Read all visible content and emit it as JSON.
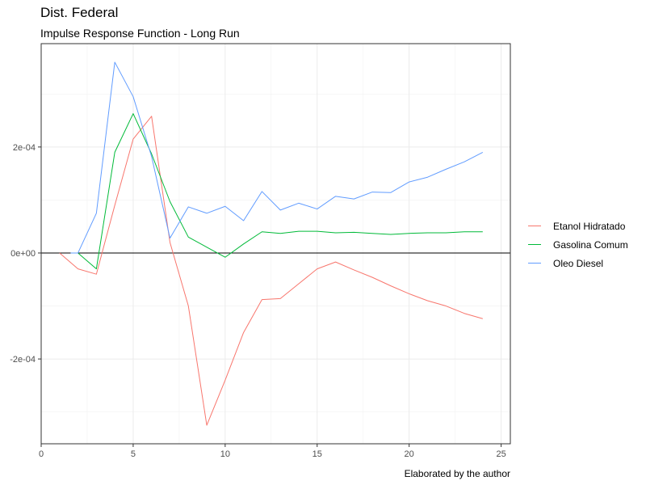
{
  "header": {
    "title": "Dist. Federal",
    "subtitle": "Impulse Response Function - Long Run"
  },
  "caption": "Elaborated by the author",
  "chart_data": {
    "type": "line",
    "title": "Dist. Federal",
    "subtitle": "Impulse Response Function - Long Run",
    "xlabel": "",
    "ylabel": "",
    "xlim": [
      0,
      25.5
    ],
    "ylim": [
      -0.00036,
      0.000395
    ],
    "x_ticks": [
      0,
      5,
      10,
      15,
      20,
      25
    ],
    "x_tick_labels": [
      "0",
      "5",
      "10",
      "15",
      "20",
      "25"
    ],
    "y_ticks": [
      -0.0002,
      0,
      0.0002
    ],
    "y_tick_labels": [
      "-2e-04",
      "0e+00",
      "2e-04"
    ],
    "grid": true,
    "legend_position": "right",
    "series": [
      {
        "name": "Etanol Hidratado",
        "color": "#F8766D",
        "x": [
          1,
          2,
          3,
          4,
          5,
          6,
          7,
          8,
          9,
          10,
          11,
          12,
          13,
          14,
          15,
          16,
          17,
          18,
          19,
          20,
          21,
          22,
          23,
          24
        ],
        "y": [
          0,
          -3e-05,
          -4e-05,
          9e-05,
          0.000215,
          0.000258,
          2e-05,
          -0.0001,
          -0.000325,
          -0.00024,
          -0.00015,
          -8.8e-05,
          -8.6e-05,
          -5.8e-05,
          -3e-05,
          -1.7e-05,
          -3.2e-05,
          -4.6e-05,
          -6.2e-05,
          -7.7e-05,
          -9e-05,
          -0.0001,
          -0.000114,
          -0.000124
        ]
      },
      {
        "name": "Gasolina Comum",
        "color": "#00BA38",
        "x": [
          2,
          3,
          4,
          5,
          6,
          7,
          8,
          9,
          10,
          11,
          12,
          13,
          14,
          15,
          16,
          17,
          18,
          19,
          20,
          21,
          22,
          23,
          24
        ],
        "y": [
          0,
          -3e-05,
          0.00019,
          0.000263,
          0.000187,
          9.7e-05,
          3e-05,
          1.1e-05,
          -8e-06,
          1.7e-05,
          4e-05,
          3.7e-05,
          4.1e-05,
          4.1e-05,
          3.8e-05,
          3.9e-05,
          3.7e-05,
          3.5e-05,
          3.7e-05,
          3.8e-05,
          3.8e-05,
          4e-05,
          4e-05
        ]
      },
      {
        "name": "Oleo Diesel",
        "color": "#619CFF",
        "x": [
          1.6,
          2,
          3,
          4,
          5,
          6,
          7,
          8,
          9,
          10,
          11,
          12,
          13,
          14,
          15,
          16,
          17,
          18,
          19,
          20,
          21,
          22,
          23,
          24
        ],
        "y": [
          0,
          0,
          7.5e-05,
          0.00036,
          0.000295,
          0.000182,
          2.8e-05,
          8.7e-05,
          7.5e-05,
          8.8e-05,
          6.1e-05,
          0.000116,
          8.1e-05,
          9.4e-05,
          8.3e-05,
          0.000107,
          0.000102,
          0.000115,
          0.000114,
          0.000134,
          0.000143,
          0.000158,
          0.000172,
          0.00019
        ]
      }
    ]
  }
}
